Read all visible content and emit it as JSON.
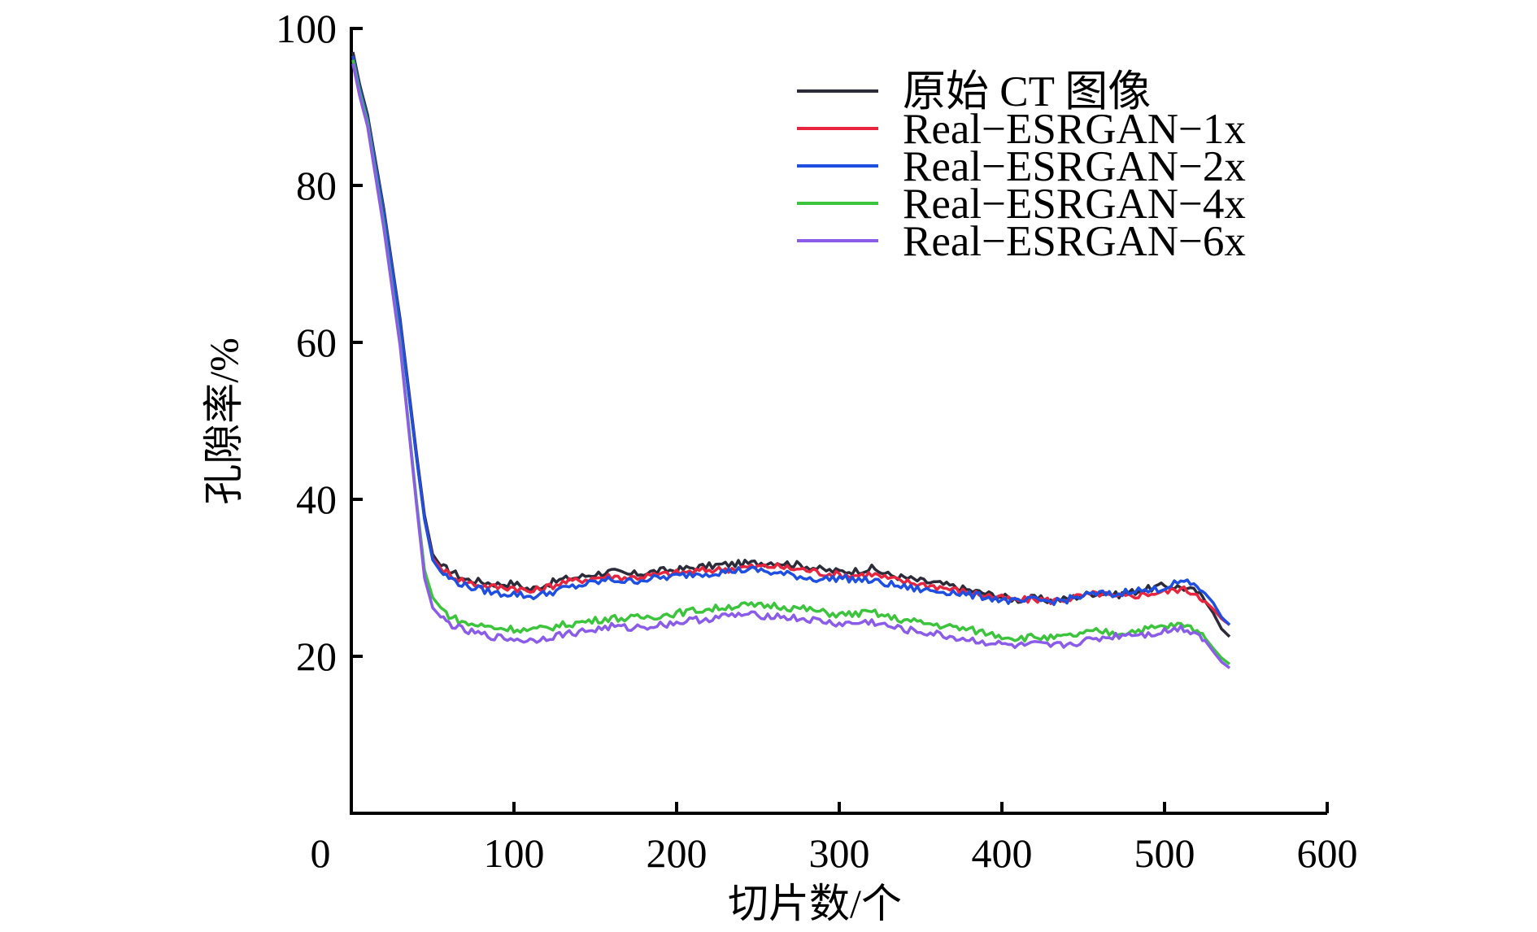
{
  "chart_data": {
    "type": "line",
    "xlabel": "切片数/个",
    "ylabel": "孔隙率/%",
    "xlim": [
      0,
      600
    ],
    "ylim": [
      0,
      100
    ],
    "x_ticks": [
      0,
      100,
      200,
      300,
      400,
      500,
      600
    ],
    "y_ticks": [
      20,
      40,
      60,
      80,
      100
    ],
    "legend_position": "top-right",
    "grid": false,
    "series": [
      {
        "name": "原始 CT 图像",
        "color": "#2b2b3a",
        "x": [
          1,
          5,
          10,
          20,
          30,
          40,
          45,
          50,
          55,
          60,
          70,
          80,
          90,
          100,
          110,
          120,
          130,
          140,
          150,
          160,
          170,
          180,
          190,
          200,
          210,
          220,
          230,
          240,
          250,
          260,
          270,
          280,
          290,
          300,
          310,
          320,
          330,
          340,
          350,
          360,
          370,
          380,
          390,
          400,
          410,
          420,
          430,
          440,
          450,
          460,
          470,
          480,
          490,
          500,
          510,
          520,
          525,
          530,
          535,
          540
        ],
        "y": [
          97,
          93,
          89,
          77,
          63,
          46,
          38,
          33,
          31.5,
          31,
          29.8,
          29.5,
          29.2,
          29.3,
          28.5,
          29.2,
          29.8,
          30.1,
          30.5,
          30.8,
          30.4,
          30.6,
          30.9,
          31.0,
          31.3,
          31.5,
          31.7,
          31.8,
          31.9,
          32.0,
          31.8,
          31.5,
          31.0,
          30.8,
          30.9,
          31.2,
          30.4,
          30.0,
          29.6,
          29.3,
          28.9,
          28.4,
          28.0,
          27.6,
          27.2,
          27.4,
          27.1,
          27.3,
          27.8,
          28.2,
          27.8,
          28.2,
          28.6,
          29.0,
          28.8,
          28.2,
          27.0,
          25.5,
          23.5,
          22.5
        ]
      },
      {
        "name": "Real−ESRGAN−1x",
        "color": "#e8253f",
        "x": [
          1,
          5,
          10,
          20,
          30,
          40,
          45,
          50,
          55,
          60,
          70,
          80,
          90,
          100,
          110,
          120,
          130,
          140,
          150,
          160,
          170,
          180,
          190,
          200,
          210,
          220,
          230,
          240,
          250,
          260,
          270,
          280,
          290,
          300,
          310,
          320,
          330,
          340,
          350,
          360,
          370,
          380,
          390,
          400,
          410,
          420,
          430,
          440,
          450,
          460,
          470,
          480,
          490,
          500,
          510,
          520,
          525,
          530,
          535,
          540
        ],
        "y": [
          96.5,
          92.5,
          88.5,
          76.5,
          62.5,
          45.5,
          37.5,
          32.5,
          31.2,
          30.5,
          29.5,
          29.0,
          28.8,
          28.8,
          28.2,
          28.8,
          29.4,
          29.7,
          30.0,
          30.2,
          30.0,
          30.2,
          30.4,
          30.6,
          30.8,
          31.0,
          31.1,
          31.3,
          31.4,
          31.5,
          31.2,
          31.0,
          30.6,
          30.4,
          30.3,
          30.5,
          29.9,
          29.5,
          29.2,
          28.9,
          28.5,
          28.1,
          27.8,
          27.4,
          27.1,
          27.3,
          27.1,
          27.3,
          27.7,
          28.0,
          27.5,
          27.7,
          28.0,
          28.2,
          28.6,
          28.0,
          27.0,
          26.0,
          24.8,
          24.0
        ]
      },
      {
        "name": "Real−ESRGAN−2x",
        "color": "#1f4fe0",
        "x": [
          1,
          5,
          10,
          20,
          30,
          40,
          45,
          50,
          55,
          60,
          70,
          80,
          90,
          100,
          110,
          120,
          130,
          140,
          150,
          160,
          170,
          180,
          190,
          200,
          210,
          220,
          230,
          240,
          250,
          260,
          270,
          280,
          290,
          300,
          310,
          320,
          330,
          340,
          350,
          360,
          370,
          380,
          390,
          400,
          410,
          420,
          430,
          440,
          450,
          460,
          470,
          480,
          490,
          500,
          510,
          520,
          525,
          530,
          535,
          540
        ],
        "y": [
          96.5,
          92.5,
          88.5,
          76.5,
          62.5,
          45.5,
          37.5,
          32.3,
          30.8,
          30.0,
          29.0,
          28.5,
          28.0,
          28.0,
          27.6,
          28.0,
          28.6,
          29.0,
          29.4,
          29.8,
          29.5,
          29.8,
          30.0,
          30.2,
          30.5,
          30.6,
          30.8,
          31.0,
          31.0,
          30.6,
          30.4,
          30.0,
          29.8,
          30.0,
          29.8,
          29.6,
          29.2,
          28.8,
          28.5,
          28.3,
          28.2,
          27.8,
          27.6,
          27.2,
          26.9,
          27.2,
          27.0,
          27.2,
          27.7,
          28.0,
          27.8,
          28.5,
          28.3,
          28.8,
          29.5,
          29.0,
          28.0,
          26.8,
          25.0,
          24.0
        ]
      },
      {
        "name": "Real−ESRGAN−4x",
        "color": "#3cc43c",
        "x": [
          1,
          5,
          10,
          20,
          30,
          40,
          45,
          50,
          55,
          60,
          70,
          80,
          90,
          100,
          110,
          120,
          130,
          140,
          150,
          160,
          170,
          180,
          190,
          200,
          210,
          220,
          230,
          240,
          250,
          260,
          270,
          280,
          290,
          300,
          310,
          320,
          330,
          340,
          350,
          360,
          370,
          380,
          390,
          400,
          410,
          420,
          430,
          440,
          450,
          460,
          470,
          480,
          490,
          500,
          510,
          520,
          525,
          530,
          535,
          540
        ],
        "y": [
          96,
          92,
          88,
          75,
          60,
          40,
          31,
          27.5,
          26.2,
          25.2,
          24.2,
          23.9,
          23.6,
          23.5,
          23.3,
          23.6,
          24.0,
          24.3,
          24.6,
          24.9,
          24.8,
          25.0,
          25.2,
          25.5,
          25.8,
          26.0,
          26.3,
          26.5,
          26.4,
          26.5,
          26.2,
          26.0,
          25.6,
          25.3,
          25.4,
          25.6,
          25.0,
          24.6,
          24.3,
          24.0,
          23.7,
          23.4,
          23.0,
          22.6,
          22.3,
          22.5,
          22.3,
          22.5,
          22.9,
          23.2,
          22.9,
          23.2,
          23.5,
          23.8,
          24.0,
          23.4,
          22.3,
          21.0,
          19.8,
          19.0
        ]
      },
      {
        "name": "Real−ESRGAN−6x",
        "color": "#8a5ce8",
        "x": [
          1,
          5,
          10,
          20,
          30,
          40,
          45,
          50,
          55,
          60,
          70,
          80,
          90,
          100,
          110,
          120,
          130,
          140,
          150,
          160,
          170,
          180,
          190,
          200,
          210,
          220,
          230,
          240,
          250,
          260,
          270,
          280,
          290,
          300,
          310,
          320,
          330,
          340,
          350,
          360,
          370,
          380,
          390,
          400,
          410,
          420,
          430,
          440,
          450,
          460,
          470,
          480,
          490,
          500,
          510,
          520,
          525,
          530,
          535,
          540
        ],
        "y": [
          95.5,
          91.5,
          87.5,
          74.5,
          59.5,
          39.5,
          30.0,
          26.2,
          25.0,
          24.2,
          23.2,
          22.8,
          22.4,
          22.2,
          22.0,
          22.4,
          22.8,
          23.1,
          23.4,
          23.8,
          23.6,
          23.8,
          24.0,
          24.3,
          24.6,
          24.8,
          25.1,
          25.3,
          25.2,
          25.2,
          24.9,
          24.7,
          24.4,
          24.1,
          24.2,
          24.4,
          23.8,
          23.4,
          23.1,
          22.8,
          22.4,
          22.1,
          21.8,
          21.5,
          21.3,
          21.5,
          21.3,
          21.5,
          21.9,
          22.3,
          22.6,
          22.9,
          22.8,
          23.2,
          23.6,
          23.0,
          22.0,
          20.6,
          19.3,
          18.5
        ]
      }
    ]
  }
}
